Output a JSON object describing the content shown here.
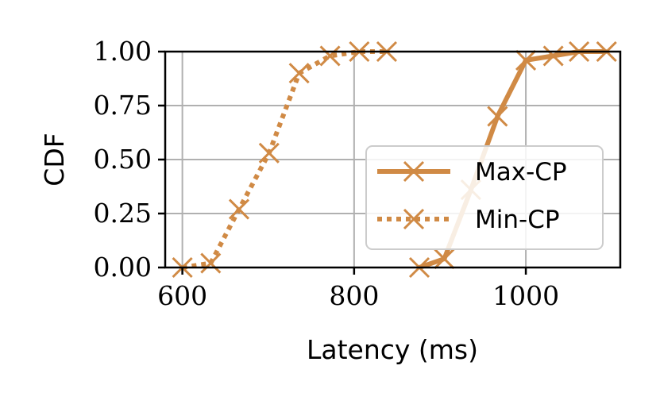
{
  "chart_data": {
    "type": "line",
    "title": "",
    "xlabel": "Latency (ms)",
    "ylabel": "CDF",
    "xlim": [
      580,
      1110
    ],
    "ylim": [
      0,
      1
    ],
    "xticks": [
      600,
      800,
      1000
    ],
    "xtick_labels": [
      "600",
      "800",
      "1000"
    ],
    "yticks": [
      0,
      0.25,
      0.5,
      0.75,
      1
    ],
    "ytick_labels": [
      "0.00",
      "0.25",
      "0.50",
      "0.75",
      "1.00"
    ],
    "grid": true,
    "legend_position": "center-right",
    "color": "#d08a45",
    "series": [
      {
        "name": "Max-CP",
        "linestyle": "solid",
        "marker": "x",
        "x": [
          876,
          905,
          936,
          967,
          1000,
          1032,
          1062,
          1094
        ],
        "y": [
          0.0,
          0.04,
          0.36,
          0.7,
          0.96,
          0.98,
          1.0,
          1.0
        ]
      },
      {
        "name": "Min-CP",
        "linestyle": "dotted",
        "marker": "x",
        "x": [
          600,
          633,
          666,
          701,
          736,
          772,
          806,
          838
        ],
        "y": [
          0.0,
          0.02,
          0.27,
          0.53,
          0.9,
          0.98,
          1.0,
          1.0
        ]
      }
    ]
  }
}
